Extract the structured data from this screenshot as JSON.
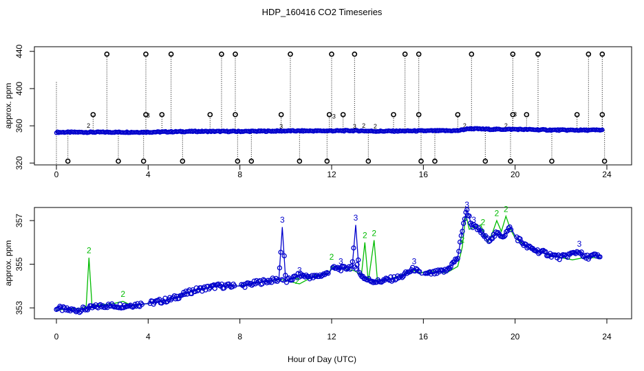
{
  "chart_data": {
    "title": "HDP_160416  CO2 Timeseries",
    "xlabel": "Hour of Day (UTC)",
    "xlim": [
      0,
      24
    ],
    "xticks": [
      "0",
      "4",
      "8",
      "12",
      "16",
      "20",
      "24"
    ],
    "colors": {
      "series1": "#000000",
      "series2": "#00bb00",
      "series3": "#0000cc",
      "spike": "#00cccc"
    },
    "panels": [
      {
        "type": "scatter",
        "ylabel": "approx. ppm",
        "ylim": [
          318,
          445
        ],
        "yticks": [
          "320",
          "360",
          "400",
          "440"
        ],
        "baseline_series": "3",
        "baseline_smooth": [
          [
            0.0,
            353.1
          ],
          [
            4.0,
            353.2
          ],
          [
            6.0,
            354.0
          ],
          [
            8.0,
            354.0
          ],
          [
            10.0,
            354.5
          ],
          [
            12.0,
            354.6
          ],
          [
            13.0,
            354.8
          ],
          [
            14.0,
            354.2
          ],
          [
            16.0,
            354.6
          ],
          [
            17.5,
            354.8
          ],
          [
            18.0,
            357.0
          ],
          [
            19.0,
            356.2
          ],
          [
            20.0,
            356.3
          ],
          [
            21.5,
            355.5
          ],
          [
            23.0,
            355.3
          ],
          [
            23.8,
            355.5
          ]
        ],
        "outlier_series": "1",
        "outliers_high": [
          2.2,
          3.9,
          5.0,
          7.2,
          7.8,
          10.2,
          12.0,
          13.0,
          15.2,
          15.8,
          18.1,
          19.9,
          21.0,
          23.2,
          23.8
        ],
        "outliers_high_value": 437,
        "outliers_mid": [
          1.6,
          3.9,
          4.6,
          6.7,
          7.8,
          9.8,
          11.9,
          12.5,
          14.7,
          15.8,
          17.5,
          19.9,
          20.5,
          22.7,
          23.8
        ],
        "outliers_mid_value": 372,
        "outliers_low": [
          0.5,
          2.7,
          3.8,
          5.5,
          7.9,
          8.5,
          10.6,
          11.8,
          13.6,
          15.9,
          16.5,
          18.7,
          19.8,
          21.6,
          23.9
        ],
        "outliers_low_value": 322,
        "series2_spikes": [
          [
            1.4,
            358
          ],
          [
            13.4,
            358
          ],
          [
            13.9,
            357
          ],
          [
            17.8,
            358
          ],
          [
            19.6,
            358
          ]
        ],
        "series3_spikes": [
          [
            4.0,
            369
          ],
          [
            9.8,
            357
          ],
          [
            12.1,
            368
          ],
          [
            13.0,
            357
          ],
          [
            20.0,
            370
          ]
        ]
      },
      {
        "type": "line",
        "ylabel": "approx. ppm",
        "ylim": [
          352.5,
          357.6
        ],
        "yticks": [
          "353",
          "355",
          "357"
        ],
        "series_labels": [
          "2",
          "3"
        ],
        "series2": [
          [
            0.0,
            352.9
          ],
          [
            1.2,
            353.0
          ],
          [
            1.3,
            353.1
          ],
          [
            1.42,
            355.3
          ],
          [
            1.55,
            353.1
          ],
          [
            2.5,
            353.2
          ],
          [
            2.9,
            353.3
          ],
          [
            3.3,
            353.1
          ],
          [
            4.0,
            353.2
          ],
          [
            5.0,
            353.4
          ],
          [
            6.0,
            353.8
          ],
          [
            7.0,
            354.0
          ],
          [
            7.9,
            354.0
          ],
          [
            9.0,
            354.2
          ],
          [
            9.8,
            354.3
          ],
          [
            10.6,
            354.1
          ],
          [
            11.3,
            354.5
          ],
          [
            11.9,
            354.6
          ],
          [
            12.0,
            354.9
          ],
          [
            12.5,
            354.8
          ],
          [
            13.0,
            354.7
          ],
          [
            13.3,
            354.5
          ],
          [
            13.45,
            356.0
          ],
          [
            13.6,
            354.2
          ],
          [
            13.85,
            356.1
          ],
          [
            14.0,
            354.2
          ],
          [
            14.5,
            354.3
          ],
          [
            15.0,
            354.5
          ],
          [
            15.6,
            354.7
          ],
          [
            15.9,
            354.6
          ],
          [
            16.2,
            354.7
          ],
          [
            17.0,
            354.6
          ],
          [
            17.5,
            354.9
          ],
          [
            17.7,
            355.8
          ],
          [
            17.85,
            357.3
          ],
          [
            18.0,
            356.6
          ],
          [
            18.5,
            356.8
          ],
          [
            18.8,
            356.0
          ],
          [
            19.0,
            356.4
          ],
          [
            19.2,
            357.0
          ],
          [
            19.4,
            356.5
          ],
          [
            19.6,
            357.2
          ],
          [
            19.8,
            356.6
          ],
          [
            20.0,
            356.2
          ],
          [
            20.5,
            355.8
          ],
          [
            21.5,
            355.4
          ],
          [
            22.5,
            355.2
          ],
          [
            23.0,
            355.3
          ],
          [
            23.7,
            355.3
          ]
        ],
        "series3": [
          [
            0.0,
            353.0
          ],
          [
            0.5,
            352.9
          ],
          [
            1.0,
            352.9
          ],
          [
            2.0,
            353.1
          ],
          [
            3.0,
            353.1
          ],
          [
            4.0,
            353.2
          ],
          [
            5.0,
            353.4
          ],
          [
            6.0,
            353.8
          ],
          [
            7.0,
            354.0
          ],
          [
            8.0,
            354.0
          ],
          [
            9.0,
            354.2
          ],
          [
            9.7,
            354.3
          ],
          [
            9.85,
            356.7
          ],
          [
            10.0,
            354.2
          ],
          [
            10.6,
            354.5
          ],
          [
            11.2,
            354.4
          ],
          [
            11.9,
            354.6
          ],
          [
            12.0,
            354.8
          ],
          [
            12.5,
            354.8
          ],
          [
            12.9,
            354.9
          ],
          [
            13.05,
            356.8
          ],
          [
            13.2,
            354.6
          ],
          [
            13.5,
            354.3
          ],
          [
            14.0,
            354.2
          ],
          [
            15.0,
            354.4
          ],
          [
            15.6,
            354.8
          ],
          [
            15.9,
            354.5
          ],
          [
            16.5,
            354.6
          ],
          [
            17.0,
            354.7
          ],
          [
            17.5,
            355.3
          ],
          [
            17.75,
            356.9
          ],
          [
            17.9,
            357.5
          ],
          [
            18.1,
            356.8
          ],
          [
            18.5,
            356.5
          ],
          [
            18.8,
            356.1
          ],
          [
            19.2,
            356.4
          ],
          [
            19.5,
            356.3
          ],
          [
            19.8,
            356.7
          ],
          [
            20.0,
            356.3
          ],
          [
            20.5,
            355.8
          ],
          [
            21.0,
            355.6
          ],
          [
            22.0,
            355.3
          ],
          [
            22.8,
            355.6
          ],
          [
            23.0,
            355.3
          ],
          [
            23.5,
            355.4
          ],
          [
            23.7,
            355.3
          ]
        ],
        "labels2": [
          [
            1.42,
            355.5,
            "2"
          ],
          [
            2.9,
            353.5,
            "2"
          ],
          [
            12.0,
            355.2,
            "2"
          ],
          [
            13.45,
            356.2,
            "2"
          ],
          [
            13.85,
            356.3,
            "2"
          ],
          [
            17.7,
            356.0,
            "2"
          ],
          [
            18.6,
            356.8,
            "2"
          ],
          [
            19.2,
            357.2,
            "2"
          ],
          [
            19.6,
            357.4,
            "2"
          ],
          [
            10.5,
            354.1,
            "2"
          ]
        ],
        "labels3": [
          [
            9.85,
            356.9,
            "3"
          ],
          [
            10.6,
            354.6,
            "3"
          ],
          [
            13.05,
            357.0,
            "3"
          ],
          [
            15.6,
            355.0,
            "3"
          ],
          [
            17.9,
            357.6,
            "3"
          ],
          [
            18.2,
            356.9,
            "3"
          ],
          [
            22.8,
            355.8,
            "3"
          ],
          [
            12.4,
            355.0,
            "3"
          ]
        ]
      }
    ]
  }
}
